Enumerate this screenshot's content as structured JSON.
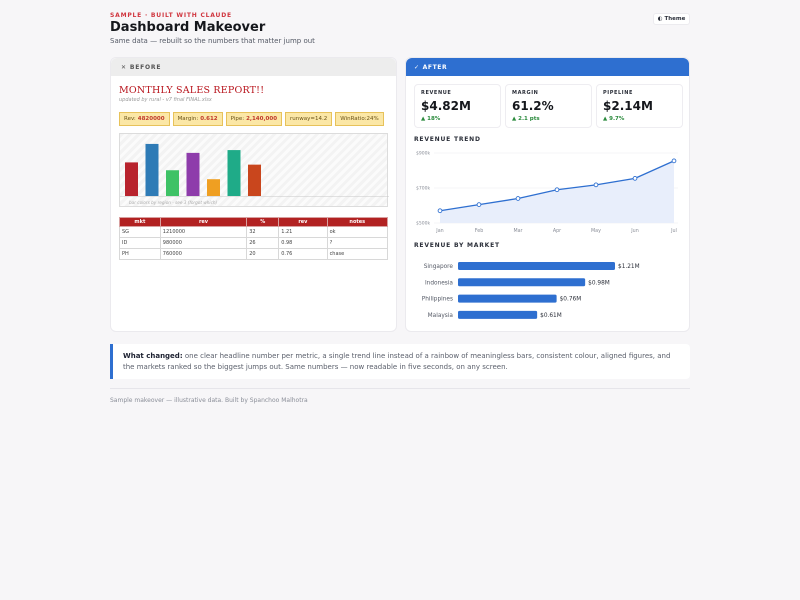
{
  "header": {
    "eyebrow": "SAMPLE · BUILT WITH CLAUDE",
    "title": "Dashboard Makeover",
    "subtitle": "Same data — rebuilt so the numbers that matter jump out",
    "theme_icon": "◐",
    "theme_label": "Theme"
  },
  "before": {
    "header_icon": "✕",
    "header_label": "BEFORE",
    "title": "MONTHLY SALES REPORT!!",
    "subtitle": "updated by rural - v7 final FINAL.xlsx",
    "chips": [
      {
        "label": "Rev:",
        "value": "4820000"
      },
      {
        "label": "Margin:",
        "value": "0.612"
      },
      {
        "label": "Pipe:",
        "value": "2,140,000"
      },
      {
        "label": "runway=14.2",
        "value": ""
      },
      {
        "label": "WinRatio:24%",
        "value": ""
      }
    ],
    "chart_caption": "bar colors by region - see 3 (forgot which)",
    "bars": [
      {
        "value": 0.6,
        "color": "#b8232d"
      },
      {
        "value": 0.93,
        "color": "#2e7bb6"
      },
      {
        "value": 0.46,
        "color": "#3ec266"
      },
      {
        "value": 0.77,
        "color": "#8e3cab"
      },
      {
        "value": 0.3,
        "color": "#ef9f22"
      },
      {
        "value": 0.82,
        "color": "#1fab88"
      },
      {
        "value": 0.56,
        "color": "#c9461d"
      }
    ],
    "table": {
      "headers": [
        "mkt",
        "rev",
        "%",
        "rev",
        "notes"
      ],
      "rows": [
        [
          "SG",
          "1210000",
          "32",
          "1.21",
          "ok"
        ],
        [
          "ID",
          "980000",
          "26",
          "0.98",
          "?"
        ],
        [
          "PH",
          "760000",
          "20",
          "0.76",
          "chase"
        ]
      ]
    }
  },
  "after": {
    "header_icon": "✓",
    "header_label": "AFTER",
    "kpis": [
      {
        "label": "REVENUE",
        "value": "$4.82M",
        "delta": "▲ 18%"
      },
      {
        "label": "MARGIN",
        "value": "61.2%",
        "delta": "▲ 2.1 pts"
      },
      {
        "label": "PIPELINE",
        "value": "$2.14M",
        "delta": "▲ 9.7%"
      }
    ],
    "trend_title": "REVENUE TREND",
    "bars_title": "REVENUE BY MARKET",
    "accent": "#2e6fd0"
  },
  "chart_data": [
    {
      "type": "line",
      "title": "REVENUE TREND",
      "x": [
        "Jan",
        "Feb",
        "Mar",
        "Apr",
        "May",
        "Jun",
        "Jul"
      ],
      "values": [
        570,
        605,
        640,
        690,
        718,
        755,
        855
      ],
      "y_tick_labels": [
        "$900k",
        "$700k",
        "$500k"
      ],
      "y_ticks": [
        900,
        700,
        500
      ],
      "ylim": [
        500,
        900
      ],
      "grid": true,
      "color": "#2e6fd0"
    },
    {
      "type": "bar",
      "orientation": "horizontal",
      "title": "REVENUE BY MARKET",
      "categories": [
        "Singapore",
        "Indonesia",
        "Philippines",
        "Malaysia"
      ],
      "values": [
        1.21,
        0.98,
        0.76,
        0.61
      ],
      "labels": [
        "$1.21M",
        "$0.98M",
        "$0.76M",
        "$0.61M"
      ],
      "unit": "$M",
      "color": "#2e6fd0"
    }
  ],
  "note": {
    "lead": "What changed:",
    "body": " one clear headline number per metric, a single trend line instead of a rainbow of meaningless bars, consistent colour, aligned figures, and the markets ranked so the biggest jumps out. Same numbers — now readable in five seconds, on any screen."
  },
  "footer": "Sample makeover — illustrative data. Built by Spanchoo Malhotra"
}
